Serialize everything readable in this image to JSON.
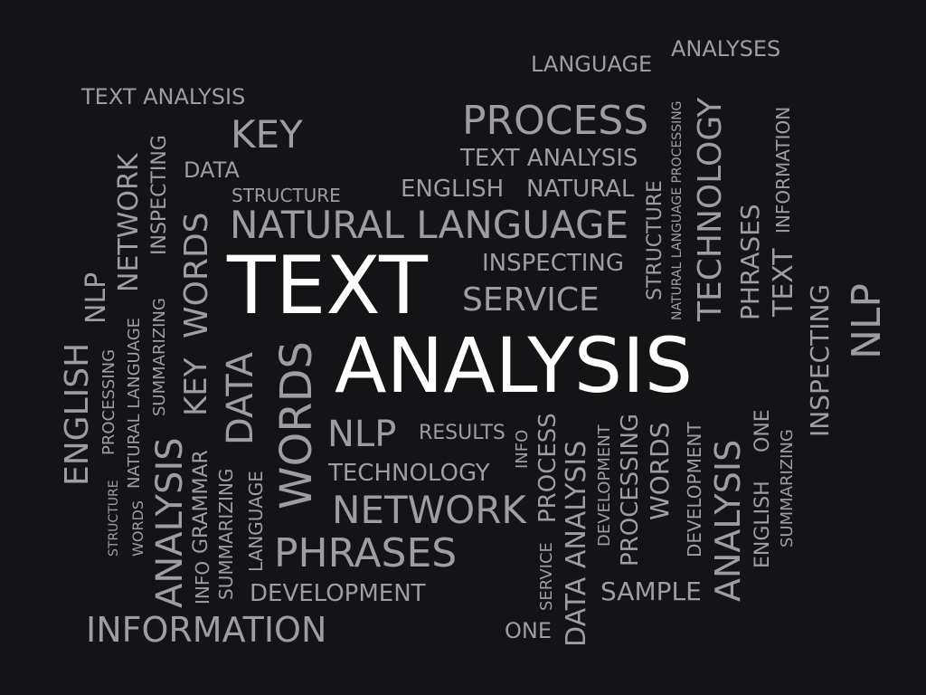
{
  "colors": {
    "background": "#141416",
    "word": "#9d9da3",
    "emphasis": "#ffffff"
  },
  "words": {
    "w1": "TEXT",
    "w2": "ANALYSIS",
    "w3": "LANGUAGE",
    "w4": "ANALYSES",
    "w5": "TEXT ANALYSIS",
    "w6": "PROCESS",
    "w7": "KEY",
    "w8": "TEXT ANALYSIS",
    "w9": "DATA",
    "w10": "ENGLISH",
    "w11": "NATURAL",
    "w12": "STRUCTURE",
    "w13": "NATURAL LANGUAGE",
    "w14": "INSPECTING",
    "w15": "SERVICE",
    "w16": "NLP",
    "w17": "RESULTS",
    "w18": "TECHNOLOGY",
    "w19": "NETWORK",
    "w20": "PHRASES",
    "w21": "DEVELOPMENT",
    "w22": "INFORMATION",
    "w23": "SAMPLE",
    "w24": "ONE",
    "w25": "NATURAL LANGUAGE PROCESSING",
    "w26": "STRUCTURE",
    "w27": "TECHNOLOGY",
    "w28": "PHRASES",
    "w29": "INFORMATION",
    "w30": "TEXT",
    "w31": "INSPECTING",
    "w32": "NLP",
    "w33": "ENGLISH",
    "w34": "PROCESSING",
    "w35": "NLP",
    "w36": "NATURAL LANGUAGE",
    "w37": "NETWORK",
    "w38": "SUMMARIZING",
    "w39": "INSPECTING",
    "w40": "KEY",
    "w41": "WORDS",
    "w42": "DATA",
    "w43": "WORDS",
    "w44": "STRUCTURE",
    "w45": "WORDS",
    "w46": "ANALYSIS",
    "w47": "INFO",
    "w48": "GRAMMAR",
    "w49": "SUMMARIZING",
    "w50": "LANGUAGE",
    "w51": "INFO",
    "w52": "PROCESS",
    "w53": "SERVICE",
    "w54": "DATA ANALYSIS",
    "w55": "DEVELOPMENT",
    "w56": "PROCESSING",
    "w57": "WORDS",
    "w58": "DEVELOPMENT",
    "w59": "ANALYSIS",
    "w60": "ENGLISH",
    "w61": "ONE",
    "w62": "SUMMARIZING"
  }
}
